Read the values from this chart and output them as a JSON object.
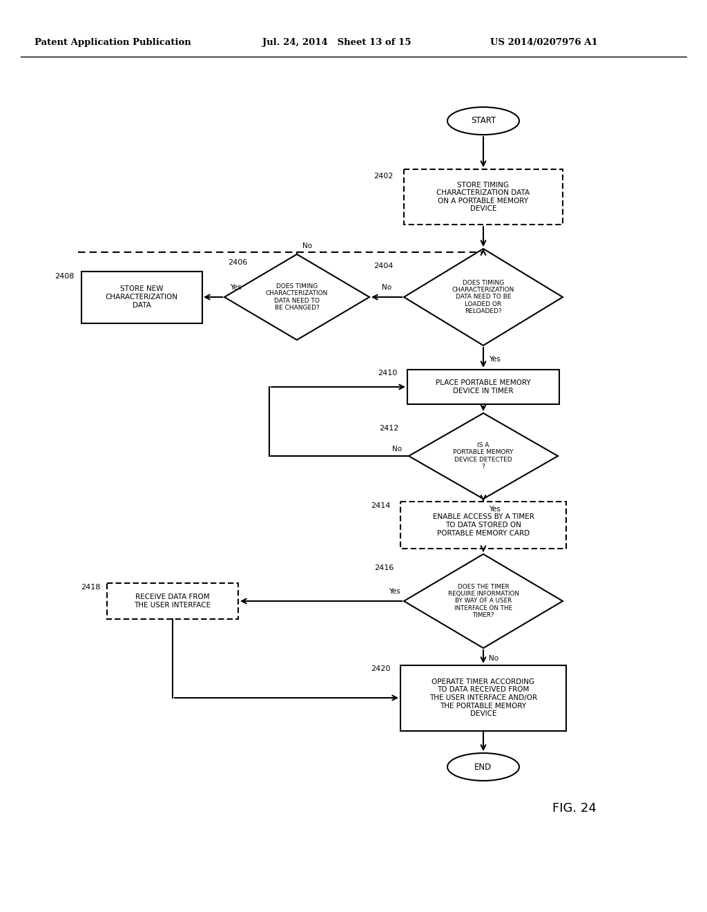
{
  "header_left": "Patent Application Publication",
  "header_center": "Jul. 24, 2014   Sheet 13 of 15",
  "header_right": "US 2014/0207976 A1",
  "fig_label": "FIG. 24",
  "bg": "#ffffff",
  "node_2402": "STORE TIMING\nCHARACTERIZATION DATA\nON A PORTABLE MEMORY\nDEVICE",
  "node_2404": "DOES TIMING\nCHARACTERIZATION\nDATA NEED TO BE\nLOADED OR\nRELOADED?",
  "node_2406": "DOES TIMING\nCHARACTERIZATION\nDATA NEED TO\nBE CHANGED?",
  "node_2408": "STORE NEW\nCHARACTERIZATION\nDATA",
  "node_2410": "PLACE PORTABLE MEMORY\nDEVICE IN TIMER",
  "node_2412": "IS A\nPORTABLE MEMORY\nDEVICE DETECTED\n?",
  "node_2414": "ENABLE ACCESS BY A TIMER\nTO DATA STORED ON\nPORTABLE MEMORY CARD",
  "node_2416": "DOES THE TIMER\nREQUIRE INFORMATION\nBY WAY OF A USER\nINTERFACE ON THE\nTIMER?",
  "node_2418": "RECEIVE DATA FROM\nTHE USER INTERFACE",
  "node_2420": "OPERATE TIMER ACCORDING\nTO DATA RECEIVED FROM\nTHE USER INTERFACE AND/OR\nTHE PORTABLE MEMORY\nDEVICE"
}
